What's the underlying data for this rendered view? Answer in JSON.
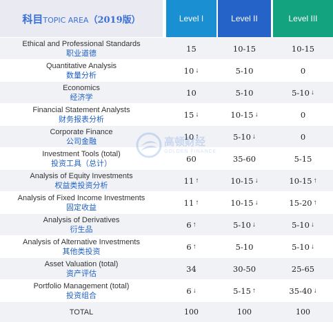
{
  "header": {
    "title_cn": "科目",
    "title_en": "TOPIC AREA",
    "title_year": "（2019版）",
    "level1": "Level I",
    "level2": "Level II",
    "level3": "Level III"
  },
  "colors": {
    "level1": "#1a8fd1",
    "level2": "#2563c9",
    "level3": "#14a37f",
    "row_shade": "#f1f2f6",
    "chinese_text": "#1f5fc4"
  },
  "rows": [
    {
      "en": "Ethical and Professional Standards",
      "zh": "职业道德",
      "l1": "15",
      "l1_arrow": "",
      "l2": "10-15",
      "l2_arrow": "",
      "l3": "10-15",
      "l3_arrow": ""
    },
    {
      "en": "Quantitative Analysis",
      "zh": "数量分析",
      "l1": "10",
      "l1_arrow": "↓",
      "l2": "5-10",
      "l2_arrow": "",
      "l3": "0",
      "l3_arrow": ""
    },
    {
      "en": "Economics",
      "zh": "经济学",
      "l1": "10",
      "l1_arrow": "",
      "l2": "5-10",
      "l2_arrow": "",
      "l3": "5-10",
      "l3_arrow": "↓"
    },
    {
      "en": "Financial Statement Analysts",
      "zh": "财务报表分析",
      "l1": "15",
      "l1_arrow": "↓",
      "l2": "10-15",
      "l2_arrow": "↓",
      "l3": "0",
      "l3_arrow": ""
    },
    {
      "en": "Corporate Finance",
      "zh": "公司金融",
      "l1": "10",
      "l1_arrow": "↑",
      "l2": "5-10",
      "l2_arrow": "↓",
      "l3": "0",
      "l3_arrow": ""
    },
    {
      "en": "Investment Tools (total)",
      "zh": "投资工具（总计）",
      "l1": "60",
      "l1_arrow": "",
      "l2": "35-60",
      "l2_arrow": "",
      "l3": "5-15",
      "l3_arrow": ""
    },
    {
      "en": "Analysis of Equity Investments",
      "zh": "权益类投资分析",
      "l1": "11",
      "l1_arrow": "↑",
      "l2": "10-15",
      "l2_arrow": "↓",
      "l3": "10-15",
      "l3_arrow": "↑"
    },
    {
      "en": "Analysis of Fixed Income Investments",
      "zh": "固定收益",
      "l1": "11",
      "l1_arrow": "↑",
      "l2": "10-15",
      "l2_arrow": "↓",
      "l3": "15-20",
      "l3_arrow": "↑"
    },
    {
      "en": "Analysis of Derivatives",
      "zh": "衍生品",
      "l1": "6",
      "l1_arrow": "↑",
      "l2": "5-10",
      "l2_arrow": "↓",
      "l3": "5-10",
      "l3_arrow": "↓"
    },
    {
      "en": "Analysis of Alternative Investments",
      "zh": "其他类投资",
      "l1": "6",
      "l1_arrow": "↑",
      "l2": "5-10",
      "l2_arrow": "",
      "l3": "5-10",
      "l3_arrow": "↓"
    },
    {
      "en": "Asset Valuation (total)",
      "zh": "资产评估",
      "l1": "34",
      "l1_arrow": "",
      "l2": "30-50",
      "l2_arrow": "",
      "l3": "25-65",
      "l3_arrow": ""
    },
    {
      "en": "Portfolio Management (total)",
      "zh": "投资组合",
      "l1": "6",
      "l1_arrow": "↓",
      "l2": "5-15",
      "l2_arrow": "↑",
      "l3": "35-40",
      "l3_arrow": "↓"
    }
  ],
  "total": {
    "label": "TOTAL",
    "l1": "100",
    "l2": "100",
    "l3": "100"
  },
  "watermark": {
    "cn": "高顿财经",
    "en": "GOLDEN FINANCE"
  }
}
